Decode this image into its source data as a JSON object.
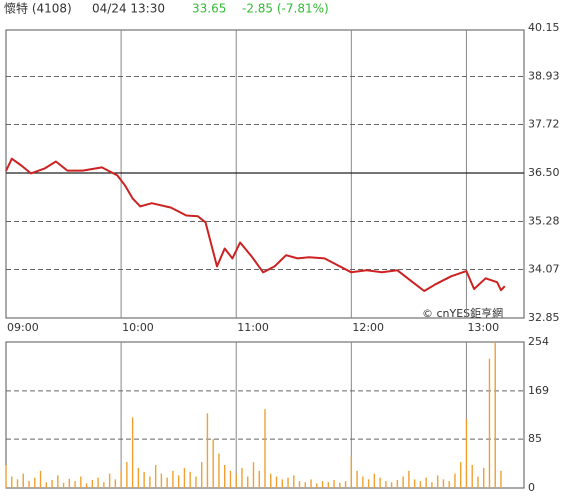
{
  "header": {
    "name": "懷特 (4108)",
    "time": "04/24 13:30",
    "price": "33.65",
    "change": "-2.85 (-7.81%)"
  },
  "watermark": "© cnYES鉅亨網",
  "chart_data": [
    {
      "type": "line",
      "color": "#cc2222",
      "x": [
        0,
        3,
        8,
        13,
        20,
        26,
        32,
        40,
        50,
        58,
        62,
        66,
        70,
        76,
        86,
        94,
        100,
        104,
        110,
        114,
        118,
        122,
        128,
        134,
        140,
        146,
        152,
        158,
        166,
        172,
        180,
        188,
        196,
        204,
        212,
        218,
        224,
        232,
        240,
        244,
        250,
        256,
        258,
        260
      ],
      "values": [
        36.55,
        36.86,
        36.69,
        36.49,
        36.61,
        36.79,
        36.56,
        36.56,
        36.64,
        36.44,
        36.19,
        35.86,
        35.66,
        35.74,
        35.63,
        35.43,
        35.41,
        35.26,
        34.15,
        34.6,
        34.35,
        34.75,
        34.4,
        34.0,
        34.15,
        34.43,
        34.35,
        34.38,
        34.35,
        34.2,
        34.0,
        34.05,
        34.0,
        34.05,
        33.75,
        33.53,
        33.7,
        33.9,
        34.03,
        33.58,
        33.85,
        33.75,
        33.55,
        33.65
      ],
      "xlim": [
        0,
        270
      ],
      "xticks": [
        {
          "value": 0,
          "label": "09:00"
        },
        {
          "value": 60,
          "label": "10:00"
        },
        {
          "value": 120,
          "label": "11:00"
        },
        {
          "value": 180,
          "label": "12:00"
        },
        {
          "value": 240,
          "label": "13:00"
        }
      ],
      "ylim": [
        32.85,
        40.15
      ],
      "yticks": [
        32.85,
        34.07,
        35.28,
        {
          "value": 36.5,
          "label": "36.50"
        },
        37.72,
        38.93,
        40.15
      ],
      "reference_line": 36.5
    },
    {
      "type": "bar",
      "color": "#f0a030",
      "x": [
        0,
        3,
        6,
        9,
        12,
        15,
        18,
        21,
        24,
        27,
        30,
        33,
        36,
        39,
        42,
        45,
        48,
        51,
        54,
        57,
        60,
        63,
        66,
        69,
        72,
        75,
        78,
        81,
        84,
        87,
        90,
        93,
        96,
        99,
        102,
        105,
        108,
        111,
        114,
        117,
        120,
        123,
        126,
        129,
        132,
        135,
        138,
        141,
        144,
        147,
        150,
        153,
        156,
        159,
        162,
        165,
        168,
        171,
        174,
        177,
        180,
        183,
        186,
        189,
        192,
        195,
        198,
        201,
        204,
        207,
        210,
        213,
        216,
        219,
        222,
        225,
        228,
        231,
        234,
        237,
        240,
        243,
        246,
        249,
        252,
        255,
        258
      ],
      "values": [
        40,
        20,
        15,
        25,
        12,
        18,
        30,
        10,
        14,
        22,
        9,
        16,
        12,
        20,
        8,
        14,
        18,
        10,
        25,
        15,
        30,
        45,
        123,
        35,
        28,
        20,
        40,
        25,
        18,
        30,
        22,
        35,
        28,
        20,
        45,
        130,
        85,
        60,
        40,
        30,
        25,
        35,
        20,
        45,
        30,
        137,
        25,
        20,
        15,
        18,
        22,
        12,
        10,
        15,
        8,
        12,
        10,
        14,
        9,
        12,
        55,
        30,
        20,
        15,
        25,
        18,
        12,
        10,
        14,
        20,
        30,
        15,
        12,
        18,
        10,
        22,
        15,
        12,
        25,
        45,
        120,
        40,
        20,
        35,
        225,
        254,
        30
      ],
      "xlim": [
        0,
        270
      ],
      "ylim": [
        0,
        254
      ],
      "yticks": [
        0,
        85,
        169,
        254
      ]
    }
  ]
}
